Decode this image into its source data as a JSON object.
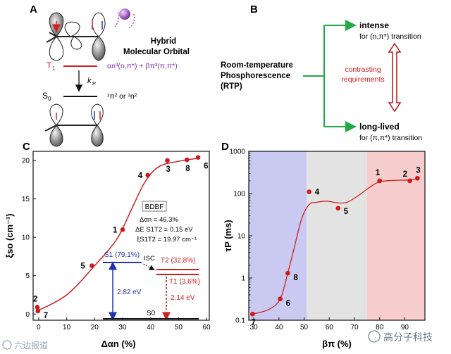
{
  "panels": {
    "A": "A",
    "B": "B",
    "C": "C",
    "D": "D"
  },
  "panel_a": {
    "title_line1": "Hybrid",
    "title_line2": "Molecular Orbital",
    "t1_label": "T",
    "t1_sub": "1",
    "formula": "αn³(n,π*) + βπ³(π,π*)",
    "kp_label": "k",
    "kp_sub": "P",
    "s0_label": "S",
    "s0_sub": "0",
    "s0_config": "¹π² or ¹n²"
  },
  "panel_b": {
    "rtp_line1": "Room-temperature",
    "rtp_line2": "Phosphorescence",
    "rtp_line3": "(RTP)",
    "intense": "intense",
    "intense_sub": "for (n,π*) transition",
    "contrasting_line1": "contrasting",
    "contrasting_line2": "requirements",
    "longlived": "long-lived",
    "longlived_sub": "for (π,π*) transition"
  },
  "panel_c_inset": {
    "compound": "BDBF",
    "line1": "Δαn = 46.3%",
    "line2": "ΔE S1T2 = 0.15 eV",
    "line3": "ξS1T2 = 19.97 cm⁻¹",
    "s1": "S1 (79.1%)",
    "isc": "ISC",
    "t2": "T2 (32.8%)",
    "t1": "T1 (3.6%)",
    "e1": "2.82 eV",
    "e2": "2.14 eV",
    "s0": "S0"
  },
  "colors": {
    "curve": "#cc2222",
    "point": "#d01818",
    "blue": "#2233aa",
    "green": "#22aa44",
    "darkred": "#a81818",
    "purple": "#8833aa",
    "band_blue": "#c9c9f2",
    "band_gray": "#e3e3e3",
    "band_red": "#f6cccc"
  },
  "watermark_left": "六边报道",
  "watermark_right": "高分子科技",
  "chart_data": [
    {
      "type": "scatter",
      "panel": "C",
      "xlabel": "Δαn (%)",
      "ylabel": "ξso (cm⁻¹)",
      "xlim": [
        -2,
        61
      ],
      "ylim": [
        -0.8,
        21.2
      ],
      "xticks": [
        0,
        10,
        20,
        30,
        40,
        50,
        60
      ],
      "yticks": [
        0,
        5,
        10,
        15,
        20
      ],
      "points": [
        {
          "label": "2",
          "x": -0.5,
          "y": 0.9
        },
        {
          "label": "7",
          "x": -0.3,
          "y": 0.4
        },
        {
          "label": "5",
          "x": 19,
          "y": 6.3
        },
        {
          "label": "1",
          "x": 30,
          "y": 11
        },
        {
          "label": "4",
          "x": 39,
          "y": 18.1
        },
        {
          "label": "3",
          "x": 46,
          "y": 20
        },
        {
          "label": "8",
          "x": 53,
          "y": 20.1
        },
        {
          "label": "6",
          "x": 57,
          "y": 20.4
        }
      ],
      "fit_curve": [
        [
          -0.5,
          0.4
        ],
        [
          10,
          2.5
        ],
        [
          20,
          6.3
        ],
        [
          28,
          9.8
        ],
        [
          33,
          13.5
        ],
        [
          38,
          17.2
        ],
        [
          43,
          19.2
        ],
        [
          50,
          19.9
        ],
        [
          57,
          20.3
        ]
      ]
    },
    {
      "type": "scatter",
      "panel": "D",
      "xlabel": "βπ (%)",
      "ylabel": "τP (ms)",
      "yscale": "log",
      "xlim": [
        28,
        98
      ],
      "ylim": [
        0.1,
        1000
      ],
      "xticks": [
        30,
        40,
        50,
        60,
        70,
        80,
        90
      ],
      "yticks": [
        0.1,
        1,
        10,
        100,
        1000
      ],
      "bands": [
        {
          "from": 28,
          "to": 51,
          "name": "blue"
        },
        {
          "from": 51,
          "to": 75,
          "name": "gray"
        },
        {
          "from": 75,
          "to": 98,
          "name": "red"
        }
      ],
      "points": [
        {
          "label": "7",
          "x": 29.5,
          "y": 0.14
        },
        {
          "label": "6",
          "x": 40.5,
          "y": 0.32
        },
        {
          "label": "8",
          "x": 43.5,
          "y": 1.3
        },
        {
          "label": "4",
          "x": 52,
          "y": 110
        },
        {
          "label": "5",
          "x": 63.5,
          "y": 45
        },
        {
          "label": "1",
          "x": 80,
          "y": 200
        },
        {
          "label": "2",
          "x": 92,
          "y": 200
        },
        {
          "label": "3",
          "x": 95,
          "y": 230
        }
      ],
      "fit_curve": [
        [
          29.5,
          0.14
        ],
        [
          36,
          0.18
        ],
        [
          40.5,
          0.32
        ],
        [
          43.5,
          1.3
        ],
        [
          46,
          5
        ],
        [
          49,
          25
        ],
        [
          52,
          55
        ],
        [
          55,
          62
        ],
        [
          59,
          66
        ],
        [
          63.5,
          60
        ],
        [
          67,
          62
        ],
        [
          71,
          85
        ],
        [
          76,
          140
        ],
        [
          80,
          190
        ],
        [
          86,
          205
        ],
        [
          92,
          210
        ],
        [
          95,
          225
        ]
      ]
    }
  ]
}
